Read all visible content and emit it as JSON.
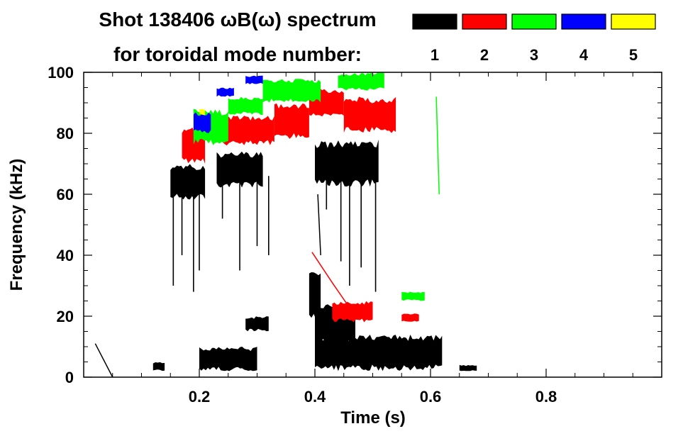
{
  "chart_data": {
    "type": "heatmap",
    "title_line1": "Shot 138406 ωB(ω) spectrum",
    "title_line2": "for toroidal mode number:",
    "xlabel": "Time (s)",
    "ylabel": "Frequency (kHz)",
    "xlim": [
      0.0,
      1.0
    ],
    "ylim": [
      0,
      100
    ],
    "x_ticks": [
      0.2,
      0.4,
      0.6,
      0.8
    ],
    "x_tick_labels": [
      "0.2",
      "0.4",
      "0.6",
      "0.8"
    ],
    "y_ticks": [
      0,
      20,
      40,
      60,
      80,
      100
    ],
    "y_tick_labels": [
      "0",
      "20",
      "40",
      "60",
      "80",
      "100"
    ],
    "legend": [
      {
        "n": "1",
        "color": "#000000"
      },
      {
        "n": "2",
        "color": "#ff0000"
      },
      {
        "n": "3",
        "color": "#00ff00"
      },
      {
        "n": "4",
        "color": "#0000ff"
      },
      {
        "n": "5",
        "color": "#ffff00"
      }
    ],
    "series": [
      {
        "name": "n=1",
        "color": "#000000",
        "regions": [
          {
            "t": [
              0.15,
              0.21
            ],
            "f": [
              58,
              70
            ]
          },
          {
            "t": [
              0.23,
              0.31
            ],
            "f": [
              62,
              74
            ]
          },
          {
            "t": [
              0.4,
              0.51
            ],
            "f": [
              62,
              78
            ]
          },
          {
            "t": [
              0.39,
              0.41
            ],
            "f": [
              18,
              35
            ]
          },
          {
            "t": [
              0.4,
              0.62
            ],
            "f": [
              2,
              14
            ]
          },
          {
            "t": [
              0.4,
              0.47
            ],
            "f": [
              10,
              24
            ]
          },
          {
            "t": [
              0.12,
              0.14
            ],
            "f": [
              2,
              5
            ]
          },
          {
            "t": [
              0.2,
              0.3
            ],
            "f": [
              2,
              10
            ]
          },
          {
            "t": [
              0.28,
              0.32
            ],
            "f": [
              15,
              20
            ]
          },
          {
            "t": [
              0.65,
              0.68
            ],
            "f": [
              2,
              4
            ]
          }
        ]
      },
      {
        "name": "n=2",
        "color": "#ff0000",
        "regions": [
          {
            "t": [
              0.17,
              0.21
            ],
            "f": [
              70,
              82
            ]
          },
          {
            "t": [
              0.24,
              0.33
            ],
            "f": [
              76,
              86
            ]
          },
          {
            "t": [
              0.33,
              0.39
            ],
            "f": [
              78,
              90
            ]
          },
          {
            "t": [
              0.45,
              0.54
            ],
            "f": [
              80,
              92
            ]
          },
          {
            "t": [
              0.39,
              0.45
            ],
            "f": [
              85,
              95
            ]
          },
          {
            "t": [
              0.43,
              0.5
            ],
            "f": [
              18,
              25
            ]
          },
          {
            "t": [
              0.55,
              0.58
            ],
            "f": [
              18,
              21
            ]
          }
        ]
      },
      {
        "name": "n=3",
        "color": "#00ff00",
        "regions": [
          {
            "t": [
              0.19,
              0.25
            ],
            "f": [
              76,
              88
            ]
          },
          {
            "t": [
              0.25,
              0.31
            ],
            "f": [
              86,
              92
            ]
          },
          {
            "t": [
              0.31,
              0.41
            ],
            "f": [
              90,
              98
            ]
          },
          {
            "t": [
              0.44,
              0.52
            ],
            "f": [
              94,
              100
            ]
          },
          {
            "t": [
              0.55,
              0.59
            ],
            "f": [
              25,
              28
            ]
          }
        ]
      },
      {
        "name": "n=4",
        "color": "#0000ff",
        "regions": [
          {
            "t": [
              0.19,
              0.22
            ],
            "f": [
              80,
              87
            ]
          },
          {
            "t": [
              0.23,
              0.26
            ],
            "f": [
              92,
              95
            ]
          },
          {
            "t": [
              0.28,
              0.31
            ],
            "f": [
              96,
              99
            ]
          }
        ]
      },
      {
        "name": "n=5",
        "color": "#ffff00",
        "regions": [
          {
            "t": [
              0.2,
              0.21
            ],
            "f": [
              86,
              88
            ]
          }
        ]
      }
    ]
  }
}
